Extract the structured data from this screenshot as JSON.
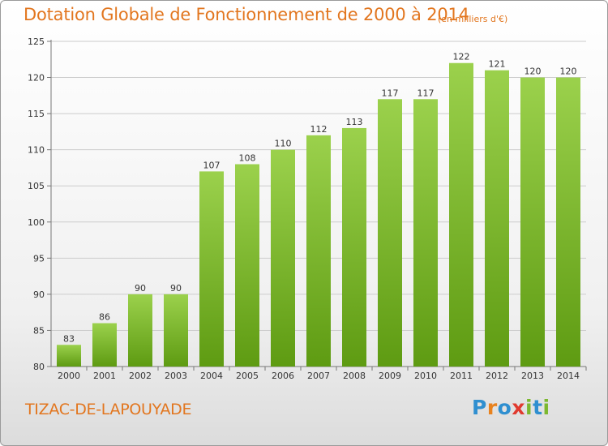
{
  "header": {
    "title": "Dotation Globale de Fonctionnement de 2000 à 2014",
    "subtitle": "(en milliers d'€)"
  },
  "footer": {
    "commune": "TIZAC-DE-LAPOUYADE",
    "logo": {
      "letters": [
        "P",
        "r",
        "o",
        "x",
        "i",
        "t",
        "i"
      ],
      "colors": [
        "#2f8fd0",
        "#e8821e",
        "#2f8fd0",
        "#e03a2f",
        "#7cb82f",
        "#2f8fd0",
        "#7cb82f"
      ]
    }
  },
  "colors": {
    "title": "#e2761f",
    "bar_top": "#9bd14c",
    "bar_bottom": "#5e9b12",
    "grid": "#cccccc"
  },
  "chart_data": {
    "type": "bar",
    "title": "Dotation Globale de Fonctionnement de 2000 à 2014",
    "subtitle": "(en milliers d'€)",
    "xlabel": "",
    "ylabel": "",
    "categories": [
      "2000",
      "2001",
      "2002",
      "2003",
      "2004",
      "2005",
      "2006",
      "2007",
      "2008",
      "2009",
      "2010",
      "2011",
      "2012",
      "2013",
      "2014"
    ],
    "values": [
      83,
      86,
      90,
      90,
      107,
      108,
      110,
      112,
      113,
      117,
      117,
      122,
      121,
      120,
      120
    ],
    "ylim": [
      80,
      125
    ],
    "yticks": [
      80,
      85,
      90,
      95,
      100,
      105,
      110,
      115,
      120,
      125
    ],
    "grid": true,
    "legend": "none"
  }
}
